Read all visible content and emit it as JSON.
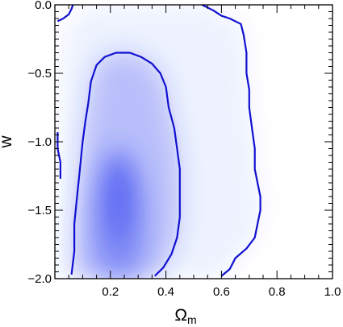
{
  "chart_data": {
    "type": "heatmap",
    "title": "",
    "xlabel": "Ω",
    "xlabel_subscript": "m",
    "ylabel": "w",
    "xlim": [
      0.0,
      1.0
    ],
    "ylim": [
      -2.0,
      0.0
    ],
    "x_ticks": [
      0.2,
      0.4,
      0.6,
      0.8,
      1.0
    ],
    "x_tick_labels": [
      "0.2",
      "0.4",
      "0.6",
      "0.8",
      "1.0"
    ],
    "y_ticks": [
      -2.0,
      -1.5,
      -1.0,
      -0.5,
      0.0
    ],
    "y_tick_labels": [
      "−2.0",
      "−1.5",
      "−1.0",
      "−0.5",
      "0.0"
    ],
    "grid": false,
    "colors": {
      "density": "#2f3ff0",
      "contour": "#1010d0",
      "axes": "#000000"
    },
    "density_peak": {
      "x": 0.23,
      "y": -1.62
    },
    "contours": [
      {
        "level": "inner",
        "points": [
          [
            0.06,
            -1.97
          ],
          [
            0.07,
            -1.8
          ],
          [
            0.07,
            -1.6
          ],
          [
            0.08,
            -1.4
          ],
          [
            0.09,
            -1.2
          ],
          [
            0.1,
            -1.0
          ],
          [
            0.11,
            -0.85
          ],
          [
            0.12,
            -0.72
          ],
          [
            0.13,
            -0.56
          ],
          [
            0.15,
            -0.44
          ],
          [
            0.18,
            -0.38
          ],
          [
            0.22,
            -0.35
          ],
          [
            0.27,
            -0.35
          ],
          [
            0.31,
            -0.38
          ],
          [
            0.35,
            -0.43
          ],
          [
            0.38,
            -0.5
          ],
          [
            0.4,
            -0.6
          ],
          [
            0.41,
            -0.75
          ],
          [
            0.43,
            -0.9
          ],
          [
            0.44,
            -1.05
          ],
          [
            0.45,
            -1.2
          ],
          [
            0.45,
            -1.4
          ],
          [
            0.45,
            -1.55
          ],
          [
            0.44,
            -1.7
          ],
          [
            0.42,
            -1.82
          ],
          [
            0.39,
            -1.92
          ],
          [
            0.36,
            -1.98
          ]
        ]
      },
      {
        "level": "outer",
        "points": [
          [
            0.53,
            0.0
          ],
          [
            0.57,
            -0.04
          ],
          [
            0.6,
            -0.08
          ],
          [
            0.63,
            -0.1
          ],
          [
            0.67,
            -0.14
          ],
          [
            0.68,
            -0.22
          ],
          [
            0.69,
            -0.35
          ],
          [
            0.69,
            -0.5
          ],
          [
            0.7,
            -0.62
          ],
          [
            0.7,
            -0.75
          ],
          [
            0.71,
            -0.9
          ],
          [
            0.72,
            -1.05
          ],
          [
            0.72,
            -1.2
          ],
          [
            0.73,
            -1.3
          ],
          [
            0.74,
            -1.4
          ],
          [
            0.74,
            -1.5
          ],
          [
            0.73,
            -1.6
          ],
          [
            0.72,
            -1.7
          ],
          [
            0.69,
            -1.78
          ],
          [
            0.65,
            -1.85
          ],
          [
            0.63,
            -1.93
          ],
          [
            0.6,
            -1.98
          ]
        ]
      },
      {
        "level": "outer-left-top",
        "points": [
          [
            0.01,
            -0.12
          ],
          [
            0.03,
            -0.1
          ],
          [
            0.05,
            -0.07
          ],
          [
            0.06,
            -0.03
          ],
          [
            0.065,
            0.0
          ]
        ]
      },
      {
        "level": "outer-left-mid",
        "points": [
          [
            0.01,
            -0.93
          ],
          [
            0.01,
            -1.05
          ],
          [
            0.02,
            -1.15
          ],
          [
            0.02,
            -1.27
          ]
        ]
      }
    ]
  }
}
